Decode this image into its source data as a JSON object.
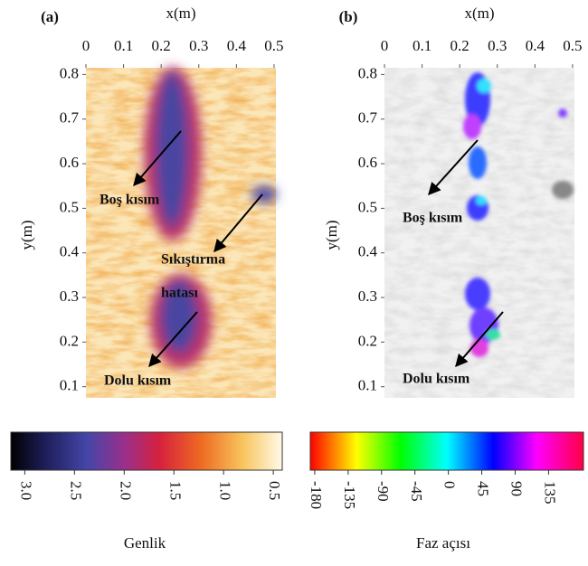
{
  "panels": [
    {
      "label": "(a)",
      "xlabel": "x(m)",
      "ylabel": "y(m)",
      "xlim": [
        0,
        0.505
      ],
      "ylim": [
        0.075,
        0.815
      ],
      "xticks": [
        0,
        0.1,
        0.2,
        0.3,
        0.4,
        0.5
      ],
      "yticks": [
        0.1,
        0.2,
        0.3,
        0.4,
        0.5,
        0.6,
        0.7,
        0.8
      ],
      "annotations": [
        "Boş kısım",
        "Sıkıştırma",
        "hatası",
        "Dolu kısım"
      ]
    },
    {
      "label": "(b)",
      "xlabel": "x(m)",
      "ylabel": "y(m)",
      "xlim": [
        0,
        0.505
      ],
      "ylim": [
        0.075,
        0.815
      ],
      "xticks": [
        0,
        0.1,
        0.2,
        0.3,
        0.4,
        0.5
      ],
      "yticks": [
        0.1,
        0.2,
        0.3,
        0.4,
        0.5,
        0.6,
        0.7,
        0.8
      ],
      "annotations": [
        "Boş kısım",
        "Dolu kısım"
      ]
    }
  ],
  "colorbars": [
    {
      "label": "Genlik",
      "lim": [
        3.14,
        0.41
      ],
      "ticks": [
        {
          "value": 3,
          "label": "3.0"
        },
        2.5,
        {
          "value": 2,
          "label": "2.0"
        },
        1.5,
        {
          "value": 1,
          "label": "1.0"
        },
        0.5
      ]
    },
    {
      "label": "Faz açısı",
      "lim": [
        -186,
        182
      ],
      "ticks": [
        -180,
        -135,
        -90,
        -45,
        0,
        45,
        90,
        135
      ]
    }
  ]
}
